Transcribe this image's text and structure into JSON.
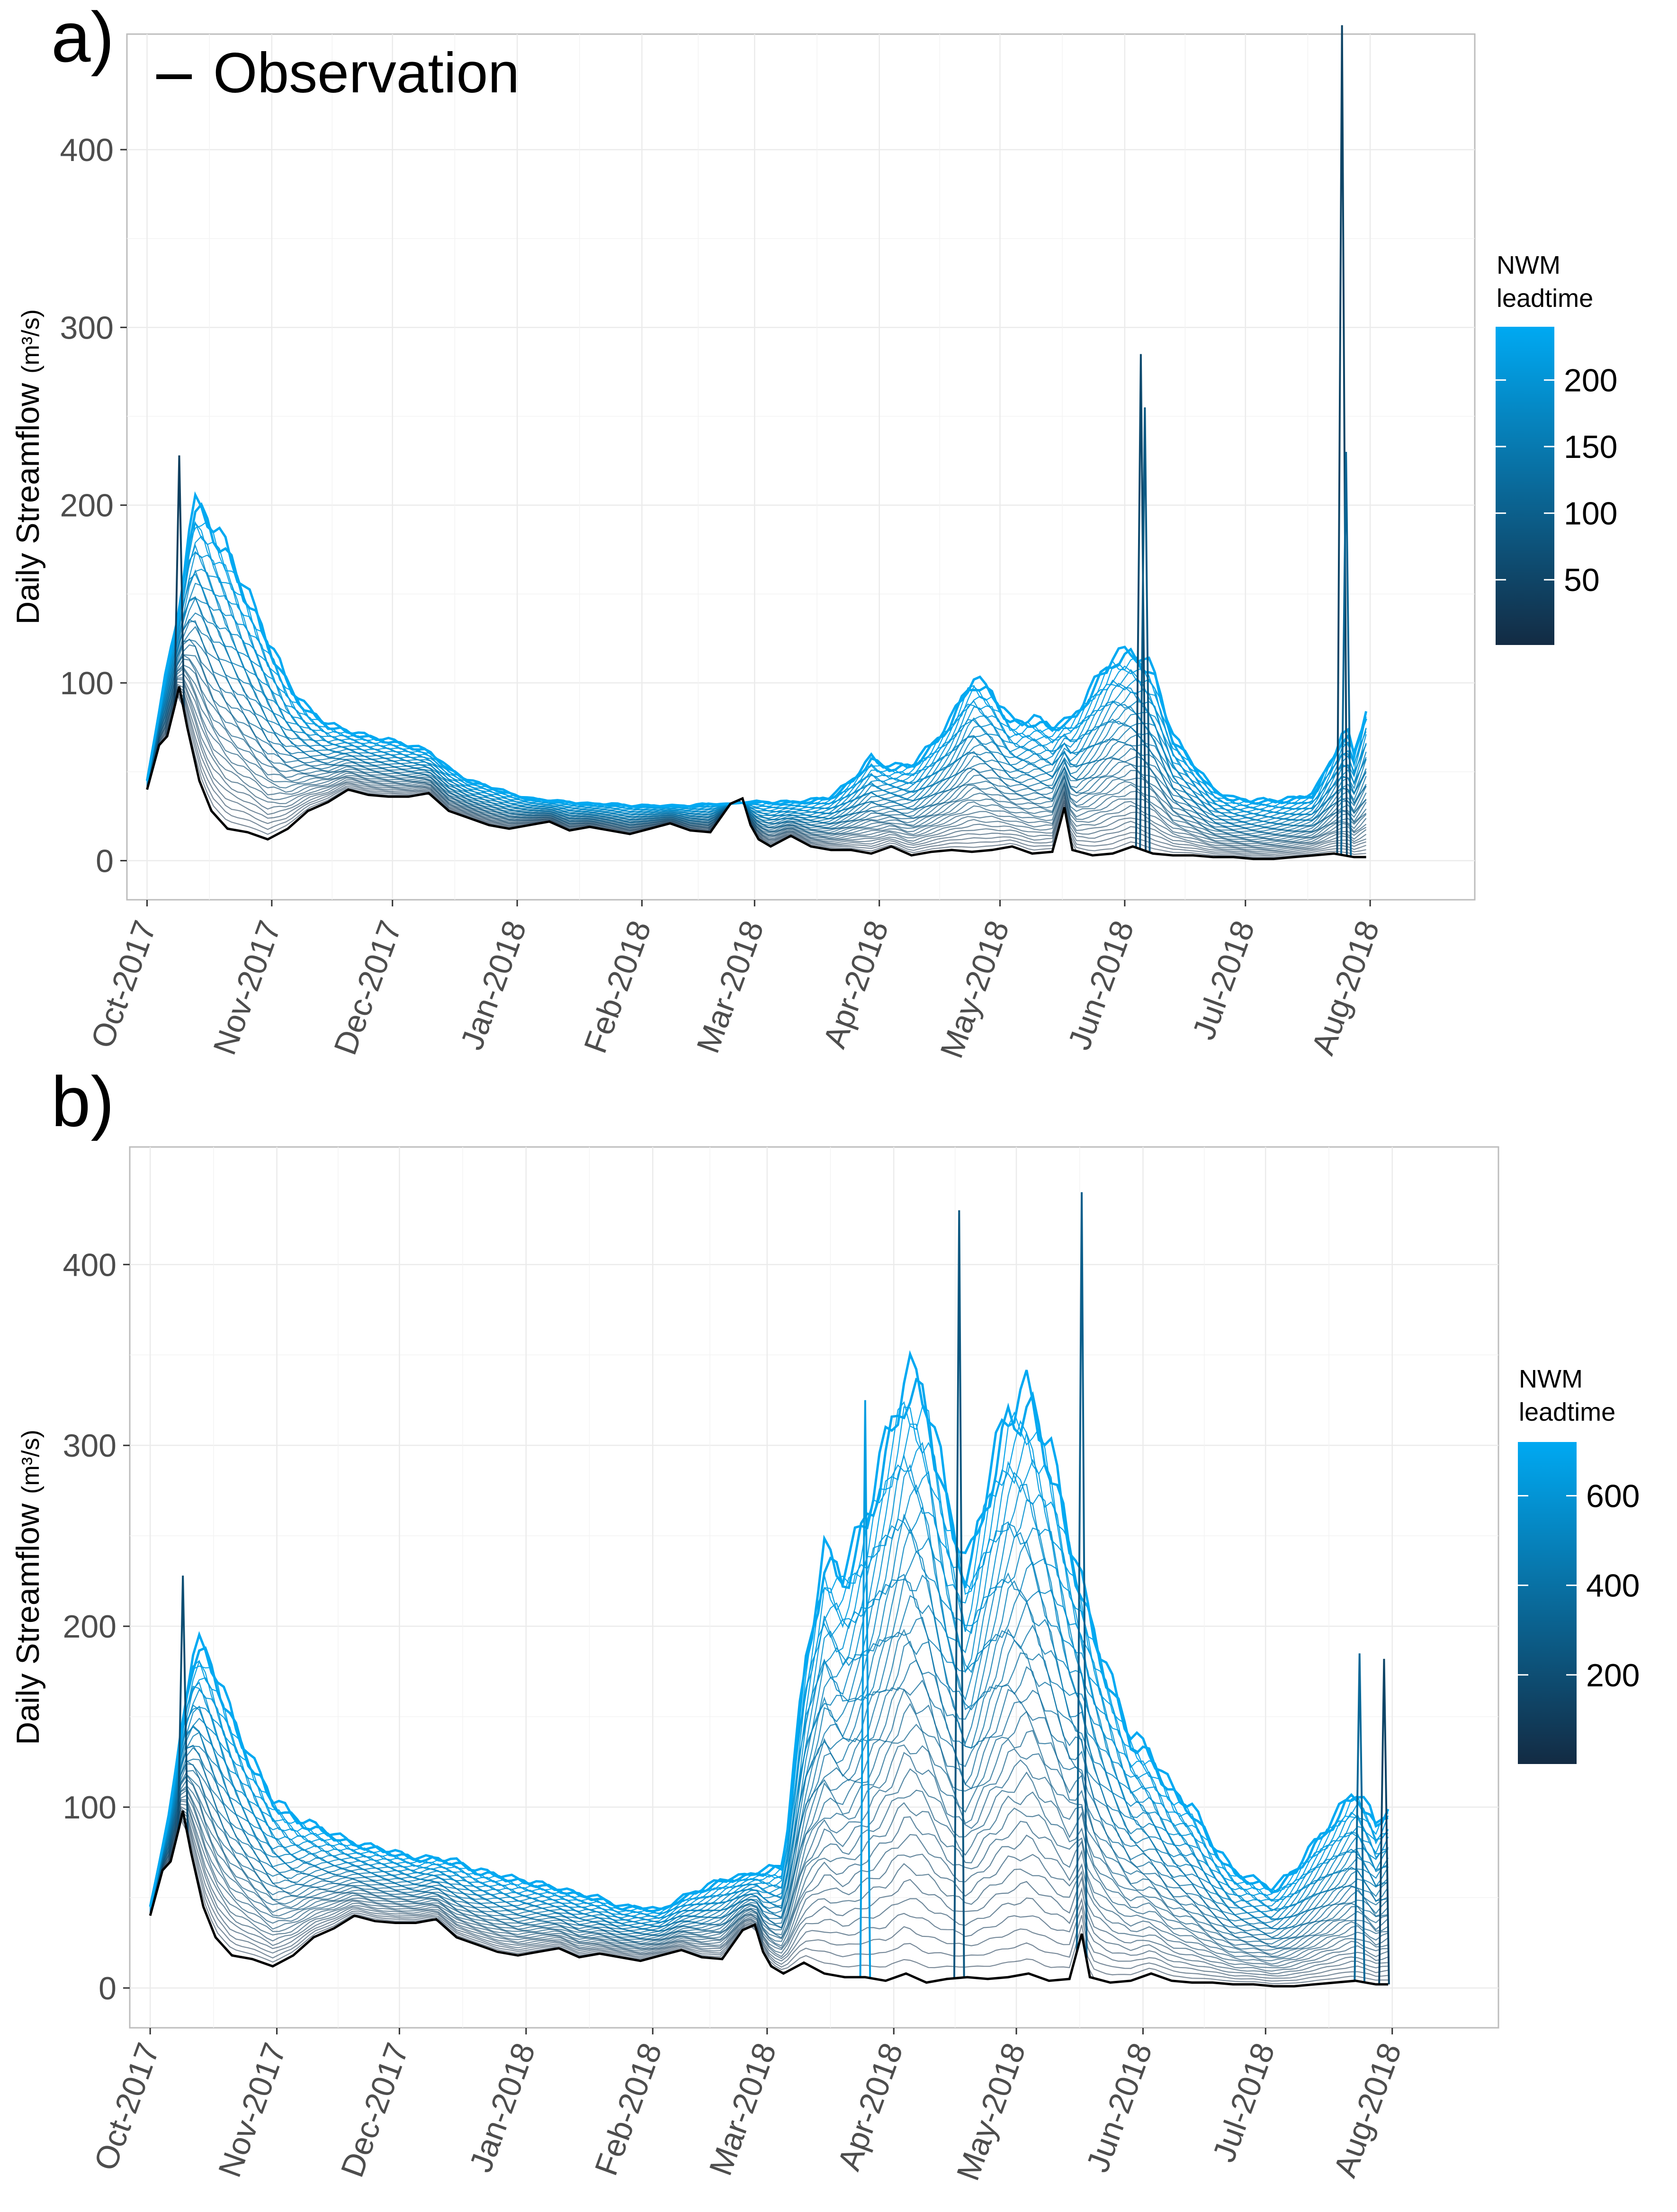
{
  "chart_data": [
    {
      "panel_label": "a)",
      "type": "line",
      "legend_observation_label": "Observation",
      "ylabel": "Daily Streamflow",
      "yunit": "(m³/s)",
      "ylim": [
        -22,
        465
      ],
      "yticks": [
        0,
        100,
        200,
        300,
        400
      ],
      "x_range_days": [
        -5,
        330
      ],
      "x_tick_days": [
        0,
        31,
        61,
        92,
        123,
        151,
        182,
        212,
        243,
        273,
        304
      ],
      "x_tick_labels": [
        "Oct-2017",
        "Nov-2017",
        "Dec-2017",
        "Jan-2018",
        "Feb-2018",
        "Mar-2018",
        "Apr-2018",
        "May-2018",
        "Jun-2018",
        "Jul-2018",
        "Aug-2018"
      ],
      "grid": true,
      "colorbar": {
        "title_line1": "NWM",
        "title_line2": "leadtime",
        "range": [
          1,
          240
        ],
        "ticks": [
          50,
          100,
          150,
          200
        ],
        "color_low": "#132b43",
        "color_high": "#00a9f2"
      },
      "observation": {
        "x": [
          0,
          3,
          5,
          7,
          8,
          10,
          13,
          16,
          20,
          25,
          30,
          35,
          40,
          45,
          50,
          55,
          60,
          65,
          70,
          75,
          80,
          85,
          90,
          95,
          100,
          105,
          110,
          115,
          120,
          125,
          130,
          135,
          140,
          145,
          148,
          150,
          152,
          155,
          160,
          165,
          170,
          175,
          180,
          185,
          190,
          195,
          200,
          205,
          210,
          215,
          220,
          225,
          228,
          230,
          235,
          240,
          245,
          250,
          255,
          260,
          265,
          270,
          275,
          280,
          285,
          290,
          295,
          300,
          303
        ],
        "y": [
          40,
          65,
          70,
          88,
          98,
          75,
          45,
          28,
          18,
          16,
          12,
          18,
          28,
          33,
          40,
          37,
          36,
          36,
          38,
          28,
          24,
          20,
          18,
          20,
          22,
          17,
          19,
          17,
          15,
          18,
          21,
          17,
          16,
          32,
          35,
          20,
          12,
          8,
          14,
          8,
          6,
          6,
          4,
          8,
          3,
          5,
          6,
          5,
          6,
          8,
          4,
          5,
          30,
          6,
          3,
          4,
          8,
          4,
          3,
          3,
          2,
          2,
          1,
          1,
          2,
          3,
          4,
          2,
          2
        ]
      },
      "forecast_envelope": {
        "x": [
          0,
          5,
          8,
          10,
          12,
          14,
          16,
          20,
          25,
          30,
          35,
          40,
          45,
          50,
          55,
          60,
          65,
          70,
          75,
          80,
          85,
          90,
          95,
          100,
          105,
          110,
          115,
          120,
          125,
          130,
          135,
          140,
          145,
          150,
          155,
          160,
          165,
          170,
          175,
          180,
          182,
          185,
          190,
          195,
          200,
          205,
          210,
          215,
          220,
          225,
          230,
          235,
          240,
          245,
          250,
          255,
          260,
          265,
          270,
          275,
          280,
          285,
          290,
          295,
          298,
          300,
          303
        ],
        "y": [
          45,
          110,
          140,
          180,
          200,
          198,
          190,
          175,
          150,
          125,
          100,
          85,
          77,
          73,
          70,
          68,
          65,
          62,
          52,
          45,
          42,
          38,
          35,
          34,
          33,
          32,
          32,
          31,
          31,
          31,
          31,
          32,
          32,
          33,
          33,
          33,
          34,
          36,
          45,
          58,
          55,
          53,
          54,
          65,
          80,
          103,
          95,
          78,
          80,
          76,
          80,
          98,
          115,
          118,
          108,
          70,
          55,
          40,
          35,
          34,
          34,
          35,
          38,
          60,
          75,
          60,
          85
        ]
      },
      "spikes": [
        {
          "x": 8,
          "y": 228,
          "lead": 40
        },
        {
          "x": 247,
          "y": 285,
          "lead": 60
        },
        {
          "x": 248,
          "y": 255,
          "lead": 90
        },
        {
          "x": 297,
          "y": 470,
          "lead": 50
        },
        {
          "x": 298,
          "y": 230,
          "lead": 110
        }
      ]
    },
    {
      "panel_label": "b)",
      "type": "line",
      "ylabel": "Daily Streamflow",
      "yunit": "(m³/s)",
      "ylim": [
        -22,
        465
      ],
      "yticks": [
        0,
        100,
        200,
        300,
        400
      ],
      "x_range_days": [
        -5,
        330
      ],
      "x_tick_days": [
        0,
        31,
        61,
        92,
        123,
        151,
        182,
        212,
        243,
        273,
        304
      ],
      "x_tick_labels": [
        "Oct-2017",
        "Nov-2017",
        "Dec-2017",
        "Jan-2018",
        "Feb-2018",
        "Mar-2018",
        "Apr-2018",
        "May-2018",
        "Jun-2018",
        "Jul-2018",
        "Aug-2018"
      ],
      "grid": true,
      "colorbar": {
        "title_line1": "NWM",
        "title_line2": "leadtime",
        "range": [
          1,
          720
        ],
        "ticks": [
          200,
          400,
          600
        ],
        "color_low": "#132b43",
        "color_high": "#00a9f2"
      },
      "observation": {
        "x": [
          0,
          3,
          5,
          7,
          8,
          10,
          13,
          16,
          20,
          25,
          30,
          35,
          40,
          45,
          50,
          55,
          60,
          65,
          70,
          75,
          80,
          85,
          90,
          95,
          100,
          105,
          110,
          115,
          120,
          125,
          130,
          135,
          140,
          145,
          148,
          150,
          152,
          155,
          160,
          165,
          170,
          175,
          180,
          185,
          190,
          195,
          200,
          205,
          210,
          215,
          220,
          225,
          228,
          230,
          235,
          240,
          245,
          250,
          255,
          260,
          265,
          270,
          275,
          280,
          285,
          290,
          295,
          300,
          303
        ],
        "y": [
          40,
          65,
          70,
          88,
          98,
          75,
          45,
          28,
          18,
          16,
          12,
          18,
          28,
          33,
          40,
          37,
          36,
          36,
          38,
          28,
          24,
          20,
          18,
          20,
          22,
          17,
          19,
          17,
          15,
          18,
          21,
          17,
          16,
          32,
          35,
          20,
          12,
          8,
          14,
          8,
          6,
          6,
          4,
          8,
          3,
          5,
          6,
          5,
          6,
          8,
          4,
          5,
          30,
          6,
          3,
          4,
          8,
          4,
          3,
          3,
          2,
          2,
          1,
          1,
          2,
          3,
          4,
          2,
          2
        ]
      },
      "forecast_envelope": {
        "x": [
          0,
          5,
          8,
          10,
          12,
          14,
          16,
          20,
          25,
          30,
          35,
          40,
          45,
          50,
          55,
          60,
          65,
          70,
          75,
          80,
          85,
          90,
          95,
          100,
          105,
          110,
          115,
          120,
          125,
          130,
          135,
          140,
          145,
          150,
          155,
          160,
          165,
          170,
          175,
          180,
          185,
          190,
          195,
          200,
          205,
          210,
          215,
          220,
          225,
          230,
          235,
          240,
          245,
          250,
          255,
          260,
          265,
          270,
          275,
          280,
          285,
          290,
          295,
          298,
          300,
          303
        ],
        "y": [
          45,
          100,
          150,
          180,
          190,
          185,
          175,
          150,
          125,
          105,
          95,
          90,
          85,
          80,
          78,
          75,
          72,
          72,
          70,
          65,
          63,
          60,
          58,
          55,
          52,
          50,
          45,
          45,
          43,
          50,
          55,
          60,
          62,
          65,
          68,
          175,
          240,
          230,
          260,
          300,
          340,
          330,
          270,
          230,
          280,
          320,
          330,
          300,
          250,
          205,
          170,
          140,
          130,
          110,
          100,
          80,
          65,
          60,
          55,
          65,
          80,
          95,
          110,
          100,
          90,
          100
        ]
      },
      "spikes": [
        {
          "x": 8,
          "y": 228,
          "lead": 200
        },
        {
          "x": 198,
          "y": 430,
          "lead": 250
        },
        {
          "x": 228,
          "y": 440,
          "lead": 300
        },
        {
          "x": 175,
          "y": 325,
          "lead": 650
        },
        {
          "x": 296,
          "y": 185,
          "lead": 350
        },
        {
          "x": 302,
          "y": 182,
          "lead": 150
        }
      ]
    }
  ]
}
